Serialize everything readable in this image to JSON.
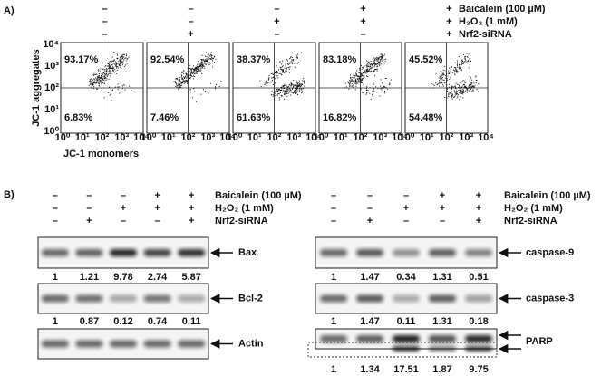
{
  "panel_a": {
    "label": "A)",
    "treatments": [
      {
        "name": "Baicalein (100 µM)",
        "signs": [
          "–",
          "–",
          "–",
          "+",
          "+"
        ]
      },
      {
        "name": "H₂O₂ (1 mM)",
        "signs": [
          "–",
          "–",
          "+",
          "+",
          "+"
        ]
      },
      {
        "name": "Nrf2-siRNA",
        "signs": [
          "–",
          "+",
          "–",
          "–",
          "+"
        ]
      }
    ],
    "plots": [
      {
        "upper": "93.17%",
        "lower": "6.83%"
      },
      {
        "upper": "92.54%",
        "lower": "7.46%"
      },
      {
        "upper": "38.37%",
        "lower": "61.63%"
      },
      {
        "upper": "83.18%",
        "lower": "16.82%"
      },
      {
        "upper": "45.52%",
        "lower": "54.48%"
      }
    ],
    "axis_ticks": [
      "10⁰",
      "10¹",
      "10²",
      "10³",
      "10⁴"
    ],
    "y_label": "JC-1 aggregates",
    "x_label": "JC-1 monomers"
  },
  "panel_b": {
    "label": "B)",
    "groups": [
      {
        "treatments": [
          {
            "name": "Baicalein (100 µM)",
            "signs": [
              "–",
              "–",
              "–",
              "+",
              "+"
            ]
          },
          {
            "name": "H₂O₂ (1 mM)",
            "signs": [
              "–",
              "–",
              "+",
              "+",
              "+"
            ]
          },
          {
            "name": "Nrf2-siRNA",
            "signs": [
              "–",
              "+",
              "–",
              "–",
              "+"
            ]
          }
        ],
        "blots": [
          {
            "name": "Bax",
            "values": [
              1,
              1.21,
              9.78,
              2.74,
              5.87
            ]
          },
          {
            "name": "Bcl-2",
            "values": [
              1,
              0.87,
              0.12,
              0.74,
              0.11
            ]
          },
          {
            "name": "Actin"
          }
        ]
      },
      {
        "treatments": [
          {
            "name": "Baicalein (100 µM)",
            "signs": [
              "–",
              "–",
              "–",
              "+",
              "+"
            ]
          },
          {
            "name": "H₂O₂ (1 mM)",
            "signs": [
              "–",
              "–",
              "+",
              "+",
              "+"
            ]
          },
          {
            "name": "Nrf2-siRNA",
            "signs": [
              "–",
              "+",
              "–",
              "–",
              "+"
            ]
          }
        ],
        "blots": [
          {
            "name": "caspase-9",
            "values": [
              1,
              1.47,
              0.34,
              1.31,
              0.51
            ]
          },
          {
            "name": "caspase-3",
            "values": [
              1,
              1.47,
              0.11,
              1.31,
              0.18
            ]
          },
          {
            "name": "PARP",
            "values": [
              1,
              1.34,
              17.51,
              1.87,
              9.75
            ]
          }
        ]
      }
    ]
  }
}
